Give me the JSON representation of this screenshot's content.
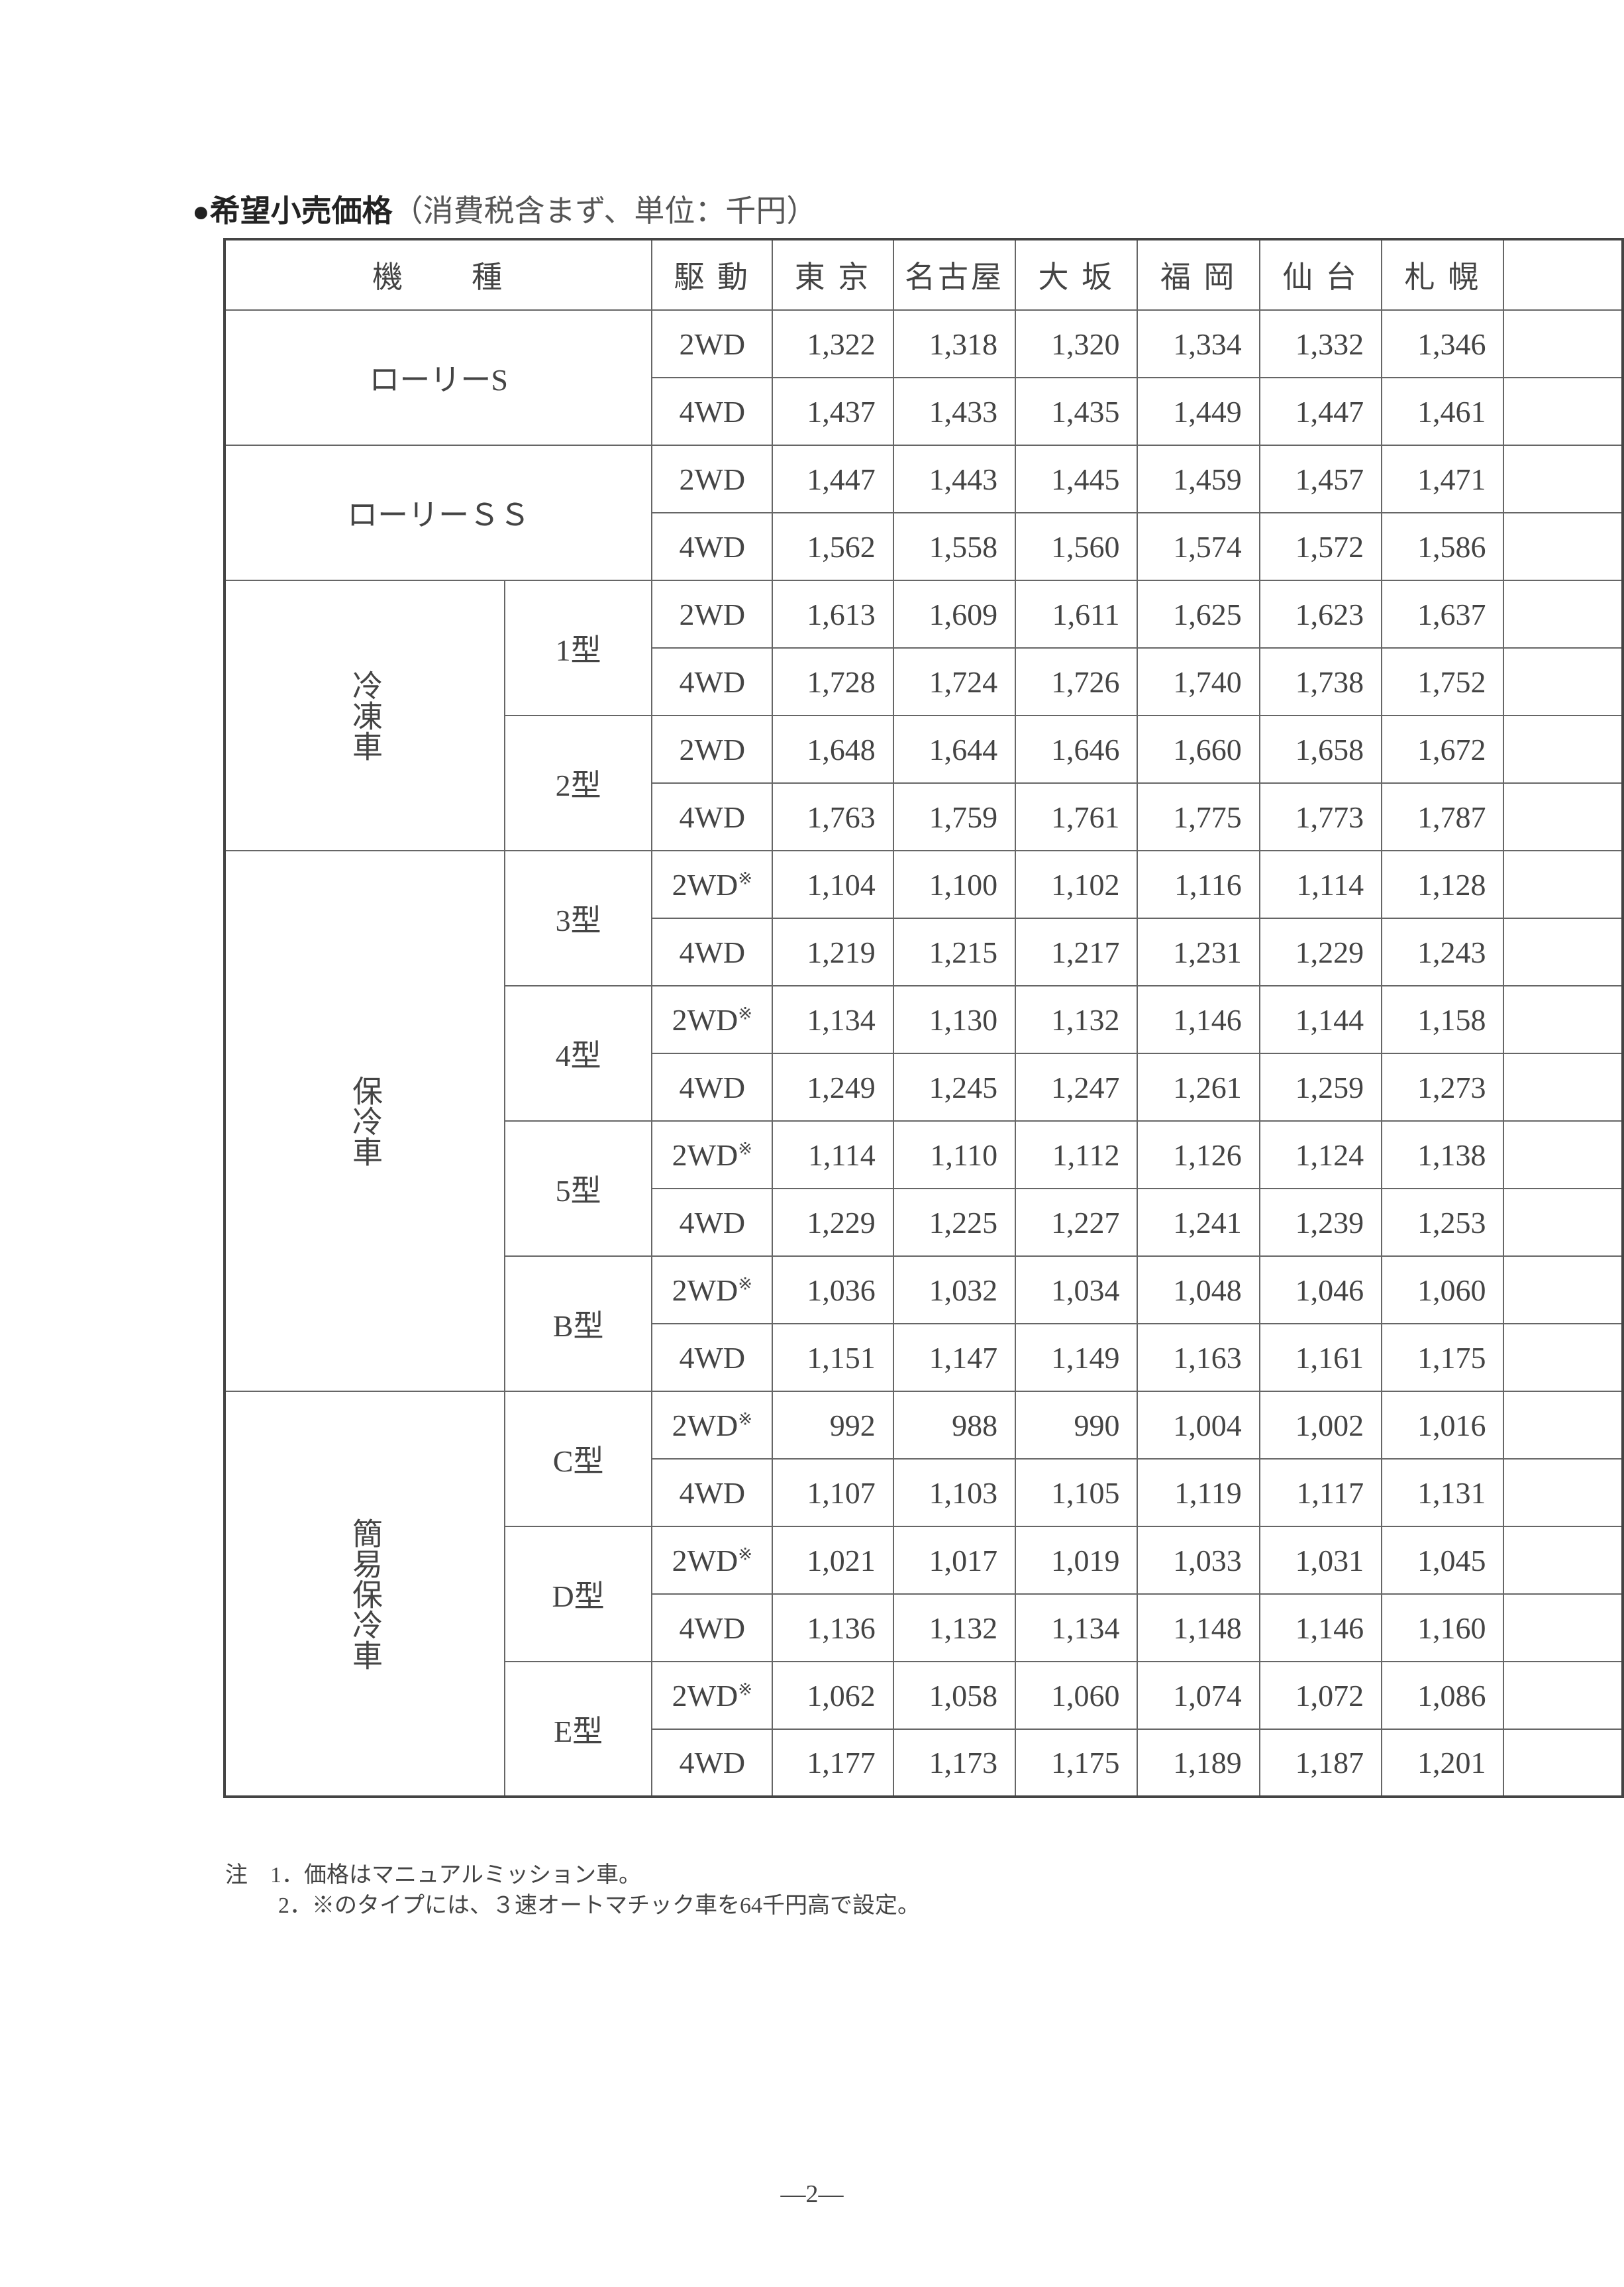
{
  "title": {
    "bullet": "●",
    "main": "希望小売価格",
    "sub": "（消費税含まず、単位：千円）"
  },
  "table": {
    "headers": [
      "機　　種",
      "駆 動",
      "東 京",
      "名古屋",
      "大 坂",
      "福 岡",
      "仙 台",
      "札 幌",
      ""
    ],
    "groups": [
      {
        "label": "ローリーS",
        "models": [
          {
            "rows": [
              {
                "drive": "2WD",
                "prices": [
                  "1,322",
                  "1,318",
                  "1,320",
                  "1,334",
                  "1,332",
                  "1,346"
                ]
              },
              {
                "drive": "4WD",
                "prices": [
                  "1,437",
                  "1,433",
                  "1,435",
                  "1,449",
                  "1,447",
                  "1,461"
                ]
              }
            ]
          }
        ]
      },
      {
        "label": "ローリーＳＳ",
        "models": [
          {
            "rows": [
              {
                "drive": "2WD",
                "prices": [
                  "1,447",
                  "1,443",
                  "1,445",
                  "1,459",
                  "1,457",
                  "1,471"
                ]
              },
              {
                "drive": "4WD",
                "prices": [
                  "1,562",
                  "1,558",
                  "1,560",
                  "1,574",
                  "1,572",
                  "1,586"
                ]
              }
            ]
          }
        ]
      },
      {
        "label": "冷凍車",
        "models": [
          {
            "name": "1型",
            "rows": [
              {
                "drive": "2WD",
                "prices": [
                  "1,613",
                  "1,609",
                  "1,611",
                  "1,625",
                  "1,623",
                  "1,637"
                ]
              },
              {
                "drive": "4WD",
                "prices": [
                  "1,728",
                  "1,724",
                  "1,726",
                  "1,740",
                  "1,738",
                  "1,752"
                ]
              }
            ]
          },
          {
            "name": "2型",
            "rows": [
              {
                "drive": "2WD",
                "prices": [
                  "1,648",
                  "1,644",
                  "1,646",
                  "1,660",
                  "1,658",
                  "1,672"
                ]
              },
              {
                "drive": "4WD",
                "prices": [
                  "1,763",
                  "1,759",
                  "1,761",
                  "1,775",
                  "1,773",
                  "1,787"
                ]
              }
            ]
          }
        ]
      },
      {
        "label": "保冷車",
        "models": [
          {
            "name": "3型",
            "rows": [
              {
                "drive": "2WD",
                "mark": "※",
                "prices": [
                  "1,104",
                  "1,100",
                  "1,102",
                  "1,116",
                  "1,114",
                  "1,128"
                ]
              },
              {
                "drive": "4WD",
                "prices": [
                  "1,219",
                  "1,215",
                  "1,217",
                  "1,231",
                  "1,229",
                  "1,243"
                ]
              }
            ]
          },
          {
            "name": "4型",
            "rows": [
              {
                "drive": "2WD",
                "mark": "※",
                "prices": [
                  "1,134",
                  "1,130",
                  "1,132",
                  "1,146",
                  "1,144",
                  "1,158"
                ]
              },
              {
                "drive": "4WD",
                "prices": [
                  "1,249",
                  "1,245",
                  "1,247",
                  "1,261",
                  "1,259",
                  "1,273"
                ]
              }
            ]
          },
          {
            "name": "5型",
            "rows": [
              {
                "drive": "2WD",
                "mark": "※",
                "prices": [
                  "1,114",
                  "1,110",
                  "1,112",
                  "1,126",
                  "1,124",
                  "1,138"
                ]
              },
              {
                "drive": "4WD",
                "prices": [
                  "1,229",
                  "1,225",
                  "1,227",
                  "1,241",
                  "1,239",
                  "1,253"
                ]
              }
            ]
          },
          {
            "name": "B型",
            "rows": [
              {
                "drive": "2WD",
                "mark": "※",
                "prices": [
                  "1,036",
                  "1,032",
                  "1,034",
                  "1,048",
                  "1,046",
                  "1,060"
                ]
              },
              {
                "drive": "4WD",
                "prices": [
                  "1,151",
                  "1,147",
                  "1,149",
                  "1,163",
                  "1,161",
                  "1,175"
                ]
              }
            ]
          }
        ]
      },
      {
        "label": "簡易保冷車",
        "models": [
          {
            "name": "C型",
            "rows": [
              {
                "drive": "2WD",
                "mark": "※",
                "prices": [
                  "992",
                  "988",
                  "990",
                  "1,004",
                  "1,002",
                  "1,016"
                ]
              },
              {
                "drive": "4WD",
                "prices": [
                  "1,107",
                  "1,103",
                  "1,105",
                  "1,119",
                  "1,117",
                  "1,131"
                ]
              }
            ]
          },
          {
            "name": "D型",
            "rows": [
              {
                "drive": "2WD",
                "mark": "※",
                "prices": [
                  "1,021",
                  "1,017",
                  "1,019",
                  "1,033",
                  "1,031",
                  "1,045"
                ]
              },
              {
                "drive": "4WD",
                "prices": [
                  "1,136",
                  "1,132",
                  "1,134",
                  "1,148",
                  "1,146",
                  "1,160"
                ]
              }
            ]
          },
          {
            "name": "E型",
            "rows": [
              {
                "drive": "2WD",
                "mark": "※",
                "prices": [
                  "1,062",
                  "1,058",
                  "1,060",
                  "1,074",
                  "1,072",
                  "1,086"
                ]
              },
              {
                "drive": "4WD",
                "prices": [
                  "1,177",
                  "1,173",
                  "1,175",
                  "1,189",
                  "1,187",
                  "1,201"
                ]
              }
            ]
          }
        ]
      }
    ]
  },
  "notes": {
    "prefix": "注",
    "note1": "1．価格はマニュアルミッション車。",
    "note2": "2．※のタイプには、３速オートマチック車を64千円高で設定。"
  },
  "page_number": "—2—"
}
